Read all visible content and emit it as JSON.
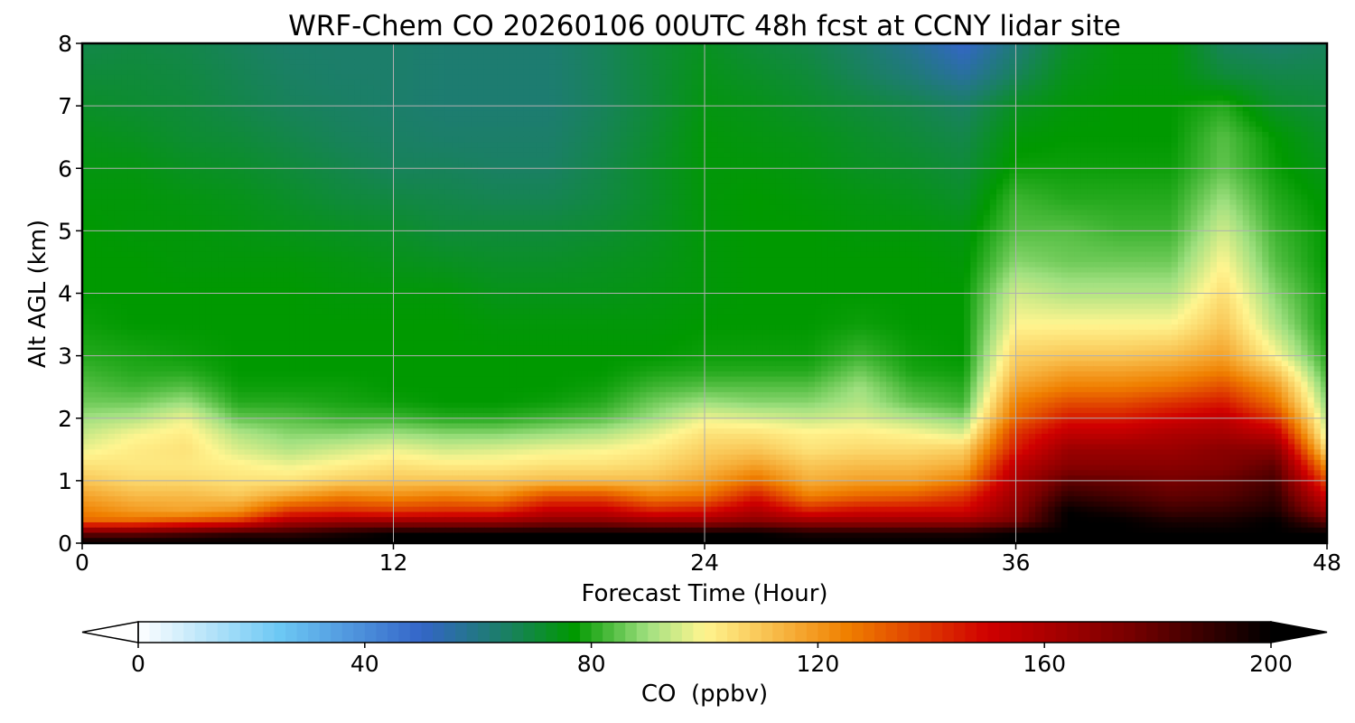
{
  "chart_data": {
    "type": "heatmap",
    "title": "WRF-Chem CO  20260106 00UTC 48h fcst at CCNY lidar site",
    "xlabel": "Forecast Time (Hour)",
    "ylabel": "Alt AGL (km)",
    "xlim": [
      0,
      48
    ],
    "ylim": [
      0,
      8
    ],
    "x_ticks": [
      0,
      12,
      24,
      36,
      48
    ],
    "y_ticks": [
      0,
      1,
      2,
      3,
      4,
      5,
      6,
      7,
      8
    ],
    "grid": true,
    "colorbar": {
      "label": "CO  (ppbv)",
      "range": [
        0,
        200
      ],
      "ticks": [
        0,
        40,
        80,
        120,
        160,
        200
      ],
      "extend": "both",
      "orientation": "horizontal",
      "colors": [
        {
          "value": 0,
          "color": "#ffffff"
        },
        {
          "value": 25,
          "color": "#6cc8f4"
        },
        {
          "value": 50,
          "color": "#3465c8"
        },
        {
          "value": 65,
          "color": "#1a8063"
        },
        {
          "value": 77,
          "color": "#009900"
        },
        {
          "value": 90,
          "color": "#a0e080"
        },
        {
          "value": 100,
          "color": "#fff590"
        },
        {
          "value": 125,
          "color": "#f08000"
        },
        {
          "value": 150,
          "color": "#d00000"
        },
        {
          "value": 175,
          "color": "#780000"
        },
        {
          "value": 200,
          "color": "#000000"
        }
      ]
    },
    "x": [
      0,
      2,
      4,
      6,
      8,
      10,
      12,
      14,
      16,
      18,
      20,
      22,
      24,
      26,
      28,
      30,
      32,
      34,
      36,
      38,
      40,
      42,
      44,
      46,
      48
    ],
    "y": [
      0,
      0.15,
      0.35,
      0.5,
      0.75,
      1.0,
      1.25,
      1.5,
      1.75,
      2.0,
      2.25,
      2.5,
      2.75,
      3.0,
      3.5,
      4.0,
      4.5,
      5.0,
      5.5,
      6.0,
      6.5,
      7.0,
      7.5,
      8.0
    ],
    "values": [
      [
        200,
        200,
        200,
        200,
        200,
        200,
        200,
        200,
        200,
        200,
        200,
        200,
        200,
        200,
        200,
        200,
        200,
        200,
        200,
        200,
        200,
        200,
        200,
        200,
        200
      ],
      [
        180,
        180,
        185,
        190,
        190,
        195,
        200,
        200,
        200,
        200,
        200,
        200,
        200,
        200,
        195,
        195,
        195,
        195,
        200,
        200,
        200,
        200,
        200,
        200,
        200
      ],
      [
        130,
        130,
        135,
        140,
        160,
        165,
        165,
        165,
        165,
        170,
        170,
        165,
        165,
        170,
        165,
        165,
        165,
        165,
        175,
        200,
        200,
        195,
        195,
        200,
        180
      ],
      [
        125,
        120,
        118,
        122,
        140,
        142,
        140,
        142,
        142,
        155,
        155,
        145,
        148,
        160,
        145,
        150,
        150,
        150,
        170,
        200,
        195,
        188,
        190,
        195,
        165
      ],
      [
        118,
        113,
        113,
        110,
        118,
        125,
        122,
        125,
        122,
        135,
        135,
        125,
        128,
        145,
        125,
        130,
        132,
        140,
        165,
        190,
        185,
        180,
        182,
        190,
        150
      ],
      [
        110,
        106,
        106,
        104,
        104,
        108,
        110,
        110,
        110,
        112,
        112,
        112,
        118,
        128,
        115,
        118,
        118,
        125,
        160,
        180,
        178,
        175,
        178,
        185,
        135
      ],
      [
        104,
        103,
        103,
        101,
        98,
        101,
        104,
        102,
        102,
        104,
        104,
        106,
        112,
        118,
        110,
        112,
        112,
        115,
        155,
        170,
        170,
        170,
        172,
        180,
        120
      ],
      [
        98,
        102,
        104,
        96,
        92,
        95,
        98,
        95,
        96,
        98,
        99,
        102,
        108,
        110,
        104,
        106,
        106,
        108,
        145,
        165,
        165,
        165,
        170,
        170,
        105
      ],
      [
        94,
        99,
        102,
        92,
        88,
        88,
        90,
        88,
        88,
        90,
        92,
        97,
        104,
        104,
        101,
        102,
        100,
        96,
        140,
        155,
        155,
        160,
        162,
        155,
        96
      ],
      [
        90,
        92,
        98,
        85,
        84,
        82,
        82,
        80,
        80,
        82,
        84,
        90,
        98,
        96,
        94,
        96,
        92,
        88,
        130,
        145,
        145,
        150,
        155,
        140,
        92
      ],
      [
        86,
        86,
        90,
        80,
        80,
        79,
        78,
        77,
        77,
        78,
        80,
        86,
        90,
        88,
        88,
        92,
        85,
        82,
        125,
        135,
        135,
        140,
        145,
        128,
        88
      ],
      [
        84,
        82,
        84,
        78,
        78,
        78,
        77,
        77,
        77,
        77,
        78,
        82,
        84,
        84,
        84,
        90,
        82,
        80,
        118,
        125,
        125,
        128,
        135,
        120,
        85
      ],
      [
        82,
        80,
        80,
        77,
        77,
        77,
        77,
        77,
        77,
        77,
        77,
        79,
        80,
        80,
        80,
        86,
        79,
        78,
        112,
        118,
        118,
        120,
        125,
        110,
        82
      ],
      [
        80,
        79,
        78,
        77,
        77,
        77,
        77,
        77,
        77,
        77,
        77,
        77,
        78,
        78,
        78,
        82,
        78,
        77,
        108,
        110,
        110,
        112,
        118,
        100,
        80
      ],
      [
        78,
        77,
        77,
        77,
        77,
        77,
        77,
        77,
        76,
        76,
        76,
        76,
        77,
        77,
        77,
        78,
        77,
        77,
        100,
        100,
        100,
        100,
        110,
        92,
        78
      ],
      [
        77,
        77,
        77,
        77,
        77,
        76,
        76,
        76,
        74,
        74,
        74,
        75,
        76,
        77,
        77,
        77,
        77,
        77,
        95,
        92,
        92,
        92,
        105,
        88,
        78
      ],
      [
        77,
        77,
        76,
        76,
        76,
        75,
        74,
        73,
        72,
        72,
        73,
        74,
        76,
        77,
        77,
        77,
        77,
        76,
        88,
        86,
        86,
        86,
        100,
        84,
        77
      ],
      [
        77,
        76,
        76,
        75,
        74,
        73,
        72,
        70,
        70,
        70,
        71,
        73,
        76,
        77,
        77,
        76,
        76,
        75,
        84,
        84,
        82,
        82,
        95,
        82,
        77
      ],
      [
        76,
        76,
        75,
        74,
        72,
        70,
        69,
        68,
        67,
        67,
        69,
        72,
        76,
        77,
        76,
        75,
        74,
        72,
        82,
        80,
        80,
        80,
        90,
        80,
        76
      ],
      [
        75,
        75,
        73,
        72,
        70,
        68,
        66,
        66,
        65,
        65,
        68,
        72,
        76,
        76,
        75,
        73,
        72,
        70,
        78,
        78,
        78,
        78,
        85,
        78,
        74
      ],
      [
        74,
        73,
        71,
        70,
        68,
        66,
        65,
        64,
        64,
        64,
        67,
        71,
        76,
        75,
        74,
        72,
        70,
        68,
        76,
        77,
        77,
        77,
        84,
        77,
        72
      ],
      [
        72,
        71,
        70,
        68,
        66,
        65,
        64,
        63,
        63,
        63,
        66,
        70,
        75,
        74,
        72,
        70,
        68,
        65,
        73,
        76,
        77,
        77,
        80,
        72,
        70
      ],
      [
        70,
        70,
        69,
        67,
        65,
        64,
        64,
        63,
        63,
        63,
        66,
        70,
        74,
        72,
        70,
        66,
        62,
        56,
        66,
        74,
        76,
        76,
        70,
        68,
        68
      ],
      [
        68,
        69,
        68,
        66,
        64,
        64,
        64,
        63,
        63,
        63,
        66,
        70,
        73,
        70,
        68,
        64,
        58,
        50,
        62,
        72,
        76,
        76,
        66,
        64,
        66
      ]
    ]
  }
}
